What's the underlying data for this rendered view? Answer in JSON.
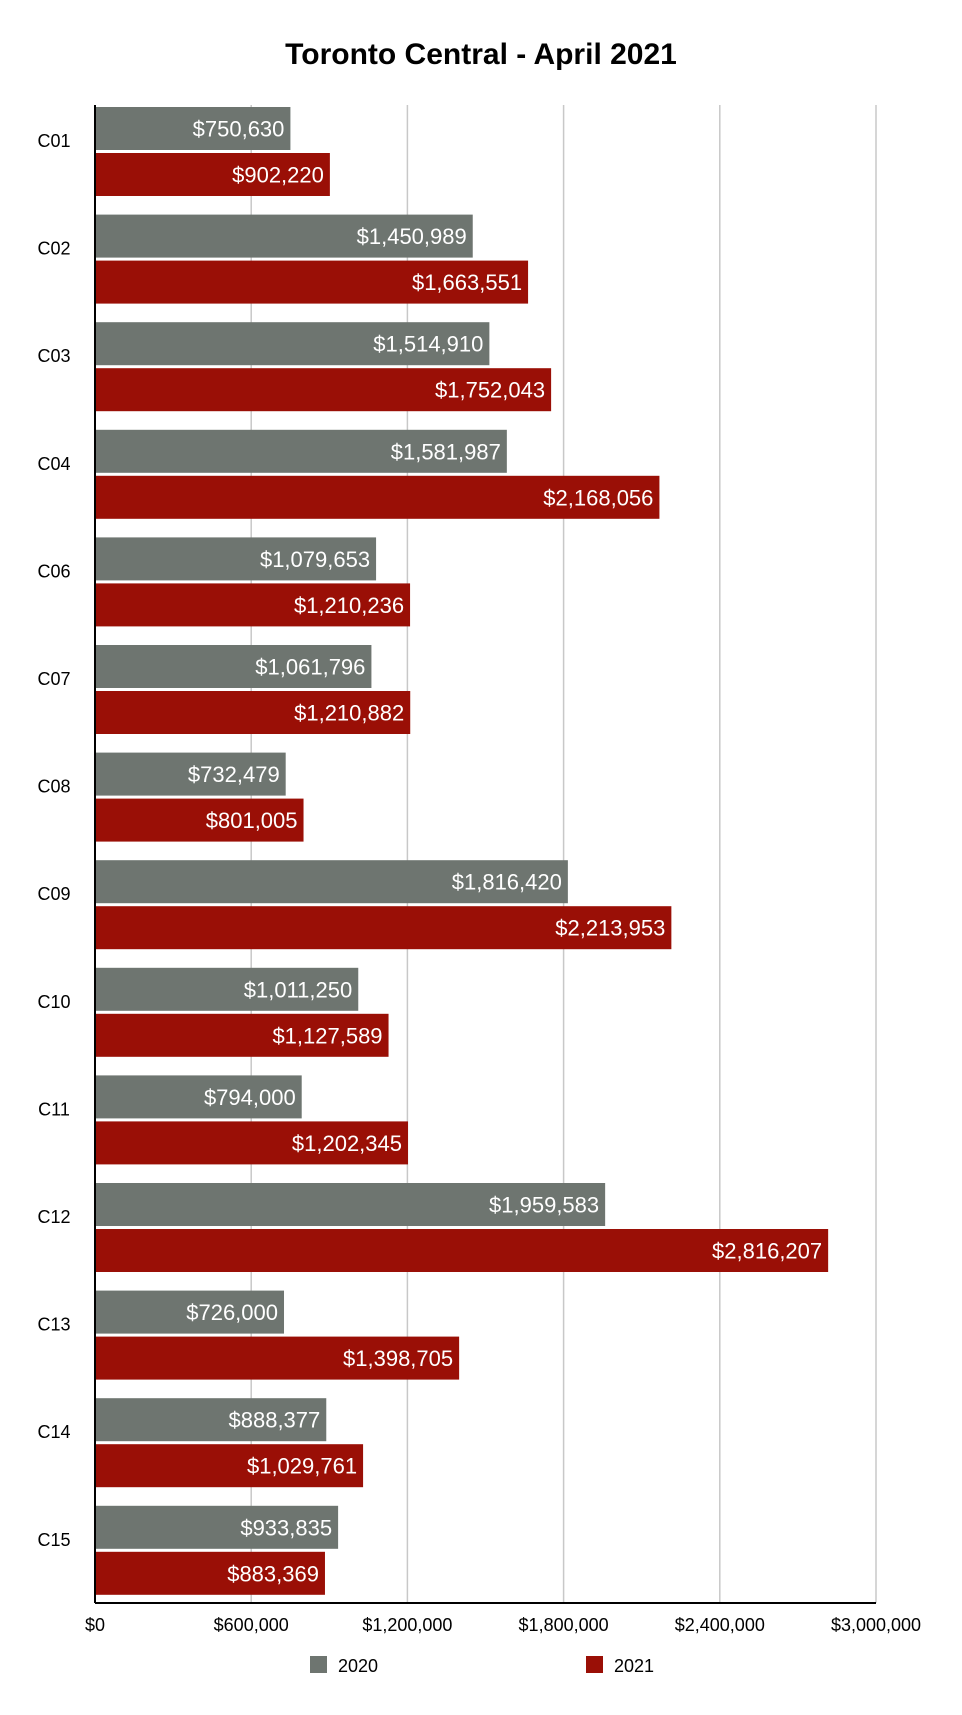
{
  "chart_data": {
    "type": "bar",
    "orientation": "horizontal",
    "title": "Toronto Central - April 2021",
    "xlabel": "",
    "ylabel": "",
    "xlim": [
      0,
      3000000
    ],
    "x_ticks": [
      0,
      600000,
      1200000,
      1800000,
      2400000,
      3000000
    ],
    "x_tick_labels": [
      "$0",
      "$600,000",
      "$1,200,000",
      "$1,800,000",
      "$2,400,000",
      "$3,000,000"
    ],
    "grid": true,
    "legend_position": "bottom",
    "categories": [
      "C01",
      "C02",
      "C03",
      "C04",
      "C06",
      "C07",
      "C08",
      "C09",
      "C10",
      "C11",
      "C12",
      "C13",
      "C14",
      "C15"
    ],
    "series": [
      {
        "name": "2020",
        "color": "#6e7570",
        "values": [
          750630,
          1450989,
          1514910,
          1581987,
          1079653,
          1061796,
          732479,
          1816420,
          1011250,
          794000,
          1959583,
          726000,
          888377,
          933835
        ],
        "labels": [
          "$750,630",
          "$1,450,989",
          "$1,514,910",
          "$1,581,987",
          "$1,079,653",
          "$1,061,796",
          "$732,479",
          "$1,816,420",
          "$1,011,250",
          "$794,000",
          "$1,959,583",
          "$726,000",
          "$888,377",
          "$933,835"
        ]
      },
      {
        "name": "2021",
        "color": "#9a0f06",
        "values": [
          902220,
          1663551,
          1752043,
          2168056,
          1210236,
          1210882,
          801005,
          2213953,
          1127589,
          1202345,
          2816207,
          1398705,
          1029761,
          883369
        ],
        "labels": [
          "$902,220",
          "$1,663,551",
          "$1,752,043",
          "$2,168,056",
          "$1,210,236",
          "$1,210,882",
          "$801,005",
          "$2,213,953",
          "$1,127,589",
          "$1,202,345",
          "$2,816,207",
          "$1,398,705",
          "$1,029,761",
          "$883,369"
        ]
      }
    ]
  }
}
